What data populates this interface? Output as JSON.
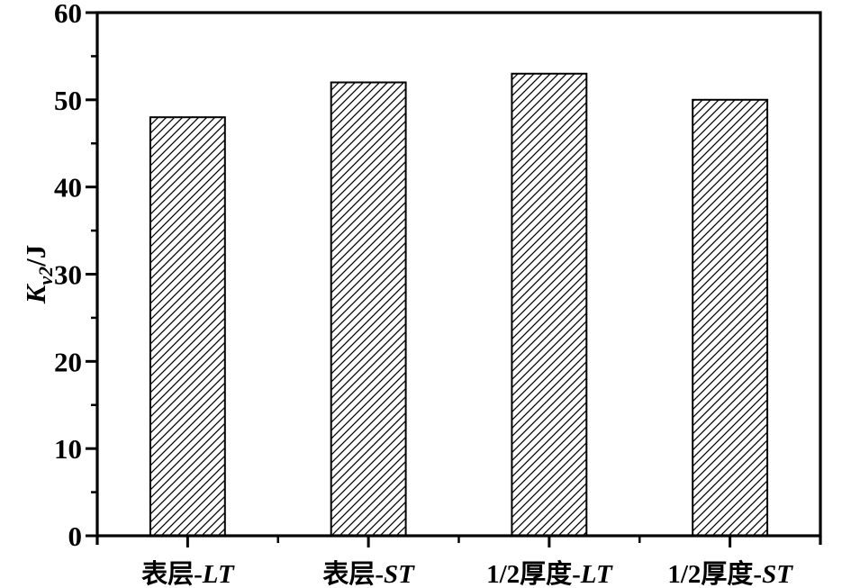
{
  "chart_data": {
    "type": "bar",
    "title": "",
    "categories": [
      "表层-LT",
      "表层-ST",
      "1/2厚度-LT",
      "1/2厚度-ST"
    ],
    "category_parts": [
      [
        {
          "text": "表层-",
          "italic": false
        },
        {
          "text": "LT",
          "italic": true
        }
      ],
      [
        {
          "text": "表层-",
          "italic": false
        },
        {
          "text": "ST",
          "italic": true
        }
      ],
      [
        {
          "text": "1/2厚度-",
          "italic": false
        },
        {
          "text": "LT",
          "italic": true
        }
      ],
      [
        {
          "text": "1/2厚度-",
          "italic": false
        },
        {
          "text": "ST",
          "italic": true
        }
      ]
    ],
    "values": [
      48,
      52,
      53,
      50
    ],
    "ylabel": "Kv2/J",
    "ylabel_parts": [
      {
        "text": "K",
        "italic": true,
        "subscript": false
      },
      {
        "text": "v2",
        "italic": true,
        "subscript": true
      },
      {
        "text": "/J",
        "italic": false,
        "subscript": false
      }
    ],
    "xlabel": "",
    "ylim": [
      0,
      60
    ],
    "yticks": [
      0,
      10,
      20,
      30,
      40,
      50,
      60
    ],
    "y_minor_step": 5,
    "grid": false,
    "legend": false,
    "layout": {
      "ticks_outside": true,
      "x_major_ticks_at": "bar-centers",
      "x_minor_ticks_at": "slot-boundaries"
    },
    "bar_style": {
      "fill": "#ffffff",
      "hatch": "diagonal-forward",
      "hatch_color": "#000000",
      "outline_color": "#000000",
      "bar_width_fraction": 0.413
    },
    "colors": {
      "axis": "#000000",
      "text": "#000000",
      "background": "#ffffff"
    }
  }
}
